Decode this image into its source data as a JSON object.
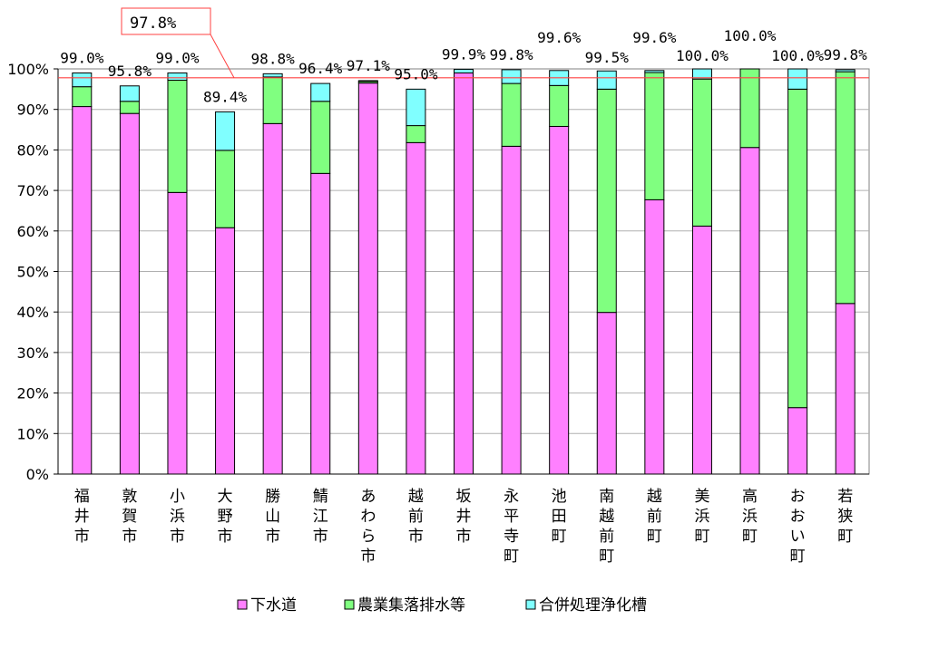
{
  "chart_data": {
    "type": "bar",
    "stacked": true,
    "categories": [
      [
        "福",
        "井",
        "市"
      ],
      [
        "敦",
        "賀",
        "市"
      ],
      [
        "小",
        "浜",
        "市"
      ],
      [
        "大",
        "野",
        "市"
      ],
      [
        "勝",
        "山",
        "市"
      ],
      [
        "鯖",
        "江",
        "市"
      ],
      [
        "あ",
        "わ",
        "ら",
        "市"
      ],
      [
        "越",
        "前",
        "市"
      ],
      [
        "坂",
        "井",
        "市"
      ],
      [
        "永",
        "平",
        "寺",
        "町"
      ],
      [
        "池",
        "田",
        "町"
      ],
      [
        "南",
        "越",
        "前",
        "町"
      ],
      [
        "越",
        "前",
        "町"
      ],
      [
        "美",
        "浜",
        "町"
      ],
      [
        "高",
        "浜",
        "町"
      ],
      [
        "お",
        "お",
        "い",
        "町"
      ],
      [
        "若",
        "狭",
        "町"
      ]
    ],
    "series": [
      {
        "name": "下水道",
        "color": "#ff80ff",
        "values": [
          90.7,
          89.0,
          69.5,
          60.8,
          86.5,
          74.2,
          96.5,
          81.8,
          99.0,
          80.9,
          85.8,
          39.9,
          67.7,
          61.2,
          80.6,
          16.4,
          42.1
        ]
      },
      {
        "name": "農業集落排水等",
        "color": "#80ff80",
        "values": [
          4.9,
          3.0,
          27.7,
          19.1,
          11.5,
          17.8,
          0.4,
          4.2,
          0.0,
          15.5,
          10.1,
          55.1,
          31.4,
          36.3,
          19.4,
          78.6,
          57.2
        ]
      },
      {
        "name": "合併処理浄化槽",
        "color": "#80ffff",
        "values": [
          3.4,
          3.8,
          1.8,
          9.5,
          0.8,
          4.4,
          0.2,
          9.0,
          0.9,
          3.4,
          3.7,
          4.5,
          0.5,
          2.5,
          0.0,
          5.0,
          0.5
        ]
      }
    ],
    "totals": [
      "99.0%",
      "95.8%",
      "99.0%",
      "89.4%",
      "98.8%",
      "96.4%",
      "97.1%",
      "95.0%",
      "99.9%",
      "99.8%",
      "99.6%",
      "99.5%",
      "99.6%",
      "100.0%",
      "100.0%",
      "100.0%",
      "99.8%"
    ],
    "yticks": [
      "0%",
      "10%",
      "20%",
      "30%",
      "40%",
      "50%",
      "60%",
      "70%",
      "80%",
      "90%",
      "100%"
    ],
    "ylim": [
      0,
      100
    ],
    "reference_line": {
      "value": 97.8,
      "label": "97.8%",
      "color": "#ff4040"
    },
    "grid": true,
    "legend": "bottom"
  }
}
